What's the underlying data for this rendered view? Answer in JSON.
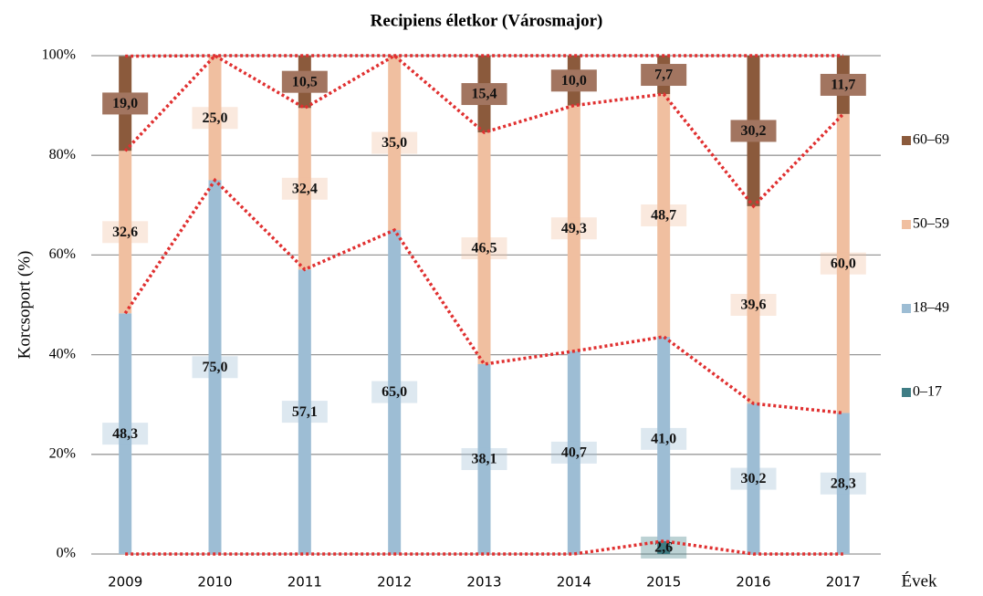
{
  "chart_data": {
    "type": "stacked_bar",
    "title": "Recipiens életkor (Városmajor)",
    "y_label": "Korcsoport (%)",
    "x_label": "Évek",
    "categories": [
      "2009",
      "2010",
      "2011",
      "2012",
      "2013",
      "2014",
      "2015",
      "2016",
      "2017"
    ],
    "series": [
      {
        "name": "0–17",
        "color": "#3f7d85",
        "values": [
          0,
          0,
          0,
          0,
          0,
          0,
          2.6,
          0,
          0
        ],
        "value_labels": [
          null,
          null,
          null,
          null,
          null,
          null,
          "2,6",
          null,
          null
        ]
      },
      {
        "name": "18–49",
        "color": "#9dbdd4",
        "values": [
          48.3,
          75.0,
          57.1,
          65.0,
          38.1,
          40.7,
          41.0,
          30.2,
          28.3
        ],
        "value_labels": [
          "48,3",
          "75,0",
          "57,1",
          "65,0",
          "38,1",
          "40,7",
          "41,0",
          "30,2",
          "28,3"
        ]
      },
      {
        "name": "50–59",
        "color": "#f0bfa0",
        "values": [
          32.6,
          25.0,
          32.4,
          35.0,
          46.5,
          49.3,
          48.7,
          39.6,
          60.0
        ],
        "value_labels": [
          "32,6",
          "25,0",
          "32,4",
          "35,0",
          "46,5",
          "49,3",
          "48,7",
          "39,6",
          "60,0"
        ]
      },
      {
        "name": "60–69",
        "color": "#8b5a3c",
        "values": [
          19.0,
          0,
          10.5,
          0,
          15.4,
          10.0,
          7.7,
          30.2,
          11.7
        ],
        "value_labels": [
          "19,0",
          null,
          "10,5",
          null,
          "15,4",
          "10,0",
          "7,7",
          "30,2",
          "11,7"
        ]
      }
    ],
    "ylim": [
      0,
      100
    ],
    "yticks": [
      {
        "value": 0,
        "label": "0%"
      },
      {
        "value": 20,
        "label": "20%"
      },
      {
        "value": 40,
        "label": "40%"
      },
      {
        "value": 60,
        "label": "60%"
      },
      {
        "value": 80,
        "label": "80%"
      },
      {
        "value": 100,
        "label": "100%"
      }
    ],
    "grid": true,
    "legend": "right",
    "line_color": "#e03030"
  }
}
